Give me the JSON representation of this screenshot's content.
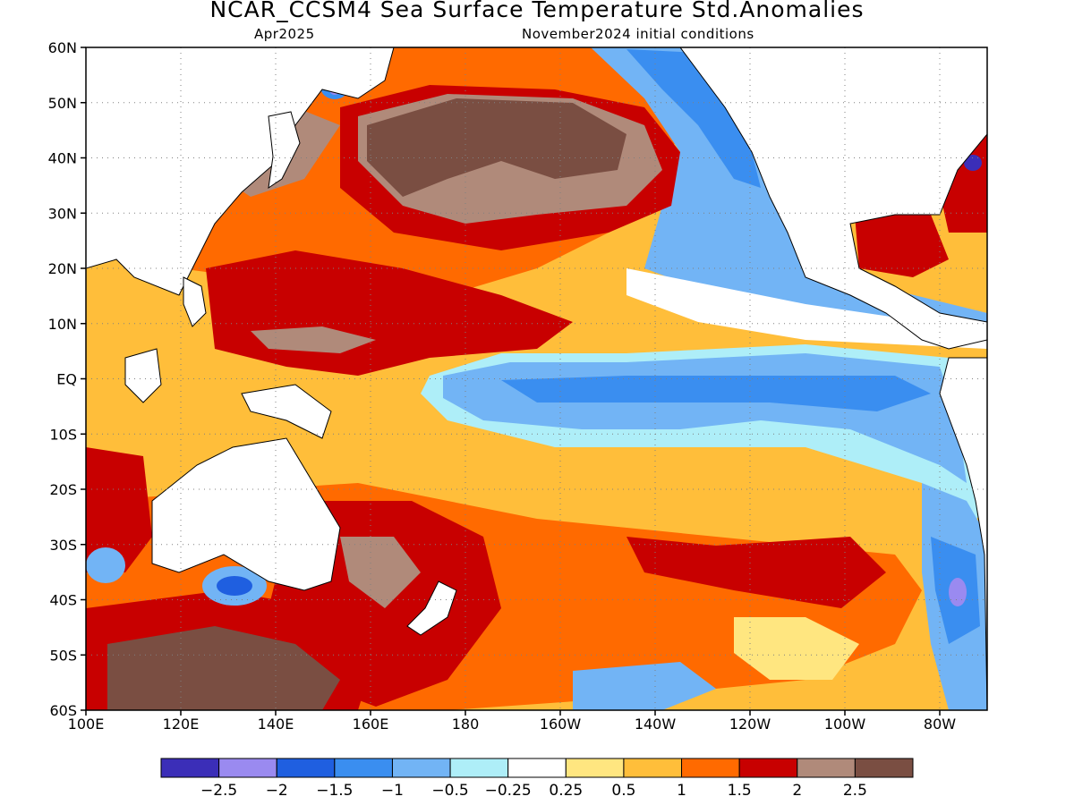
{
  "title": "NCAR_CCSM4 Sea Surface Temperature Std.Anomalies",
  "subtitle_left": "Apr2025",
  "subtitle_right": "November2024 initial conditions",
  "axes": {
    "lon_ticks": [
      "100E",
      "120E",
      "140E",
      "160E",
      "180",
      "160W",
      "140W",
      "120W",
      "100W",
      "80W"
    ],
    "lat_ticks": [
      "60N",
      "50N",
      "40N",
      "30N",
      "20N",
      "10N",
      "EQ",
      "10S",
      "20S",
      "30S",
      "40S",
      "50S",
      "60S"
    ],
    "lon_range_deg_east": [
      100,
      290
    ],
    "lat_range": [
      -60,
      60
    ],
    "grid": "dotted"
  },
  "colorbar": {
    "colors": [
      "#3b2eb8",
      "#9a8af0",
      "#1f5fe0",
      "#3a8ef0",
      "#72b4f5",
      "#aeeef8",
      "#ffffff",
      "#ffe680",
      "#ffbe3a",
      "#ff6a00",
      "#c80000",
      "#b08a7a",
      "#7a4e42"
    ],
    "labels": [
      "−2.5",
      "−2",
      "−1.5",
      "−1",
      "−0.5",
      "−0.25",
      "0.25",
      "0.5",
      "1",
      "1.5",
      "2",
      "2.5"
    ]
  }
}
